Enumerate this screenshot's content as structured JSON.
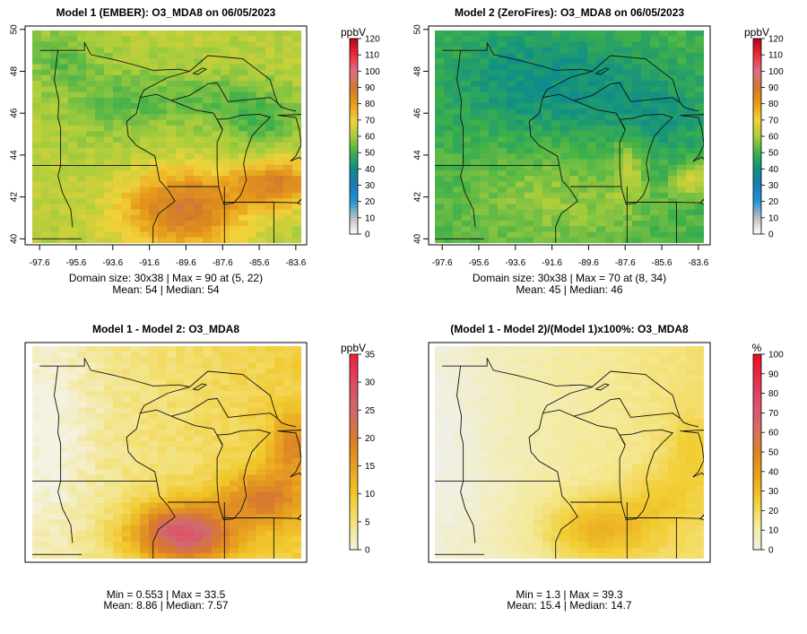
{
  "panels": [
    {
      "title": "Model 1 (EMBER): O3_MDA8 on 06/05/2023",
      "unit": "ppbV",
      "caption_line1": "Domain size: 30x38 | Max = 90 at (5, 22)",
      "caption_line2": "Mean: 54 |  Median: 54",
      "show_axes": true
    },
    {
      "title": "Model 2 (ZeroFires): O3_MDA8 on 06/05/2023",
      "unit": "ppbV",
      "caption_line1": "Domain size: 30x38 | Max = 70 at (8, 34)",
      "caption_line2": "Mean: 45 |  Median: 46",
      "show_axes": true
    },
    {
      "title": "Model 1 - Model 2: O3_MDA8",
      "unit": "ppbV",
      "caption_line1": "Min = 0.553 | Max = 33.5",
      "caption_line2": "Mean: 8.86 |  Median: 7.57",
      "show_axes": false
    },
    {
      "title": "(Model 1 - Model 2)/(Model 1)x100%: O3_MDA8",
      "unit": "%",
      "caption_line1": "Min = 1.3 | Max = 39.3",
      "caption_line2": "Mean: 15.4 |  Median: 14.7",
      "show_axes": false
    }
  ],
  "chart_data": [
    {
      "type": "heatmap",
      "title": "Model 1 (EMBER): O3_MDA8 on 06/05/2023",
      "variable": "O3_MDA8",
      "unit": "ppbV",
      "grid": "30x38",
      "x_ticks": [
        "-97.6",
        "-95.6",
        "-93.6",
        "-91.6",
        "-89.6",
        "-87.6",
        "-85.6",
        "-83.6"
      ],
      "y_ticks": [
        "40",
        "42",
        "44",
        "46",
        "48",
        "50"
      ],
      "colorbar_ticks": [
        "0",
        "10",
        "20",
        "30",
        "40",
        "50",
        "60",
        "70",
        "80",
        "90",
        "100",
        "110",
        "120"
      ],
      "color_range": [
        0,
        120
      ],
      "max": 90,
      "max_location": "(5, 22)",
      "mean": 54,
      "median": 54
    },
    {
      "type": "heatmap",
      "title": "Model 2 (ZeroFires): O3_MDA8 on 06/05/2023",
      "variable": "O3_MDA8",
      "unit": "ppbV",
      "grid": "30x38",
      "x_ticks": [
        "-97.6",
        "-95.6",
        "-93.6",
        "-91.6",
        "-89.6",
        "-87.6",
        "-85.6",
        "-83.6"
      ],
      "y_ticks": [
        "40",
        "42",
        "44",
        "46",
        "48",
        "50"
      ],
      "colorbar_ticks": [
        "0",
        "10",
        "20",
        "30",
        "40",
        "50",
        "60",
        "70",
        "80",
        "90",
        "100",
        "110",
        "120"
      ],
      "color_range": [
        0,
        120
      ],
      "max": 70,
      "max_location": "(8, 34)",
      "mean": 45,
      "median": 46
    },
    {
      "type": "heatmap",
      "title": "Model 1 - Model 2: O3_MDA8",
      "variable": "O3_MDA8",
      "unit": "ppbV",
      "colorbar_ticks": [
        "0",
        "5",
        "10",
        "15",
        "20",
        "25",
        "30",
        "35"
      ],
      "color_range": [
        0,
        35
      ],
      "min": 0.553,
      "max": 33.5,
      "mean": 8.86,
      "median": 7.57
    },
    {
      "type": "heatmap",
      "title": "(Model 1 - Model 2)/(Model 1)x100%: O3_MDA8",
      "variable": "O3_MDA8",
      "unit": "%",
      "colorbar_ticks": [
        "0",
        "10",
        "20",
        "30",
        "40",
        "50",
        "60",
        "70",
        "80",
        "90",
        "100"
      ],
      "color_range": [
        0,
        100
      ],
      "min": 1.3,
      "max": 39.3,
      "mean": 15.4,
      "median": 14.7
    }
  ],
  "colors": {
    "model_scale": [
      "#ffffff",
      "#bdbdbd",
      "#2196d6",
      "#1c79b8",
      "#0f8f86",
      "#3db04a",
      "#aacd3c",
      "#f2d33a",
      "#e79a1a",
      "#cf7a2a",
      "#dc6f8a",
      "#ef2a35",
      "#b8001a"
    ],
    "diff_scale": [
      "#f4f2e2",
      "#f3e27a",
      "#f1c72b",
      "#e79f1f",
      "#d97a2b",
      "#d06a6e",
      "#e14766",
      "#f01f35"
    ],
    "pct_scale": [
      "#f0f0e8",
      "#f4ea9a",
      "#f2cd32",
      "#e9a31d",
      "#dd8224",
      "#d66c64",
      "#dc4f6e",
      "#ea2d49",
      "#f00a1f"
    ]
  }
}
